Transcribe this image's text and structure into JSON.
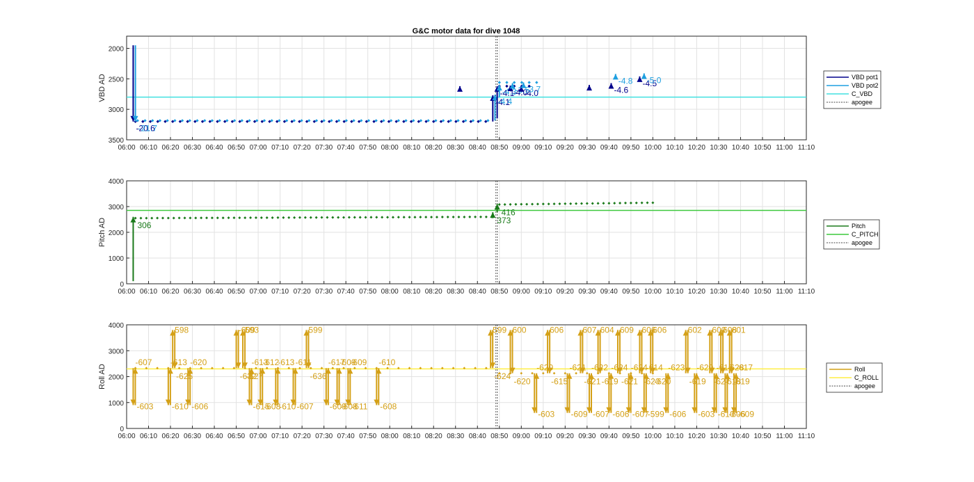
{
  "title": "G&C motor data for dive 1048",
  "x_ticks": [
    "06:00",
    "06:10",
    "06:20",
    "06:30",
    "06:40",
    "06:50",
    "07:00",
    "07:10",
    "07:20",
    "07:30",
    "07:40",
    "07:50",
    "08:00",
    "08:10",
    "08:20",
    "08:30",
    "08:40",
    "08:50",
    "09:00",
    "09:10",
    "09:20",
    "09:30",
    "09:40",
    "09:50",
    "10:00",
    "10:10",
    "10:20",
    "10:30",
    "10:40",
    "10:50",
    "11:00",
    "11:10"
  ],
  "colors": {
    "vbd_pot1": "#00008b",
    "vbd_pot2": "#1e9fe0",
    "c_vbd": "#40e0e0",
    "pitch": "#1a7a1a",
    "c_pitch": "#3cc83c",
    "roll": "#d4a017",
    "c_roll": "#ffee44",
    "apogee": "#444444"
  },
  "chart_data": [
    {
      "type": "line",
      "name": "vbd",
      "ylabel": "VBD AD",
      "ylim": [
        3500,
        1800
      ],
      "y_reversed": true,
      "y_ticks": [
        2000,
        2500,
        3000,
        3500
      ],
      "xlim_min": [
        0,
        190
      ],
      "grid": true,
      "legend_position": "outside-right",
      "legend": [
        "VBD pot1",
        "VBD pot2",
        "C_VBD",
        "apogee"
      ],
      "apogee_min": 169,
      "c_vbd": 2800,
      "pot1_dots": {
        "start": 4,
        "end": 187,
        "step": 3.4,
        "jitter_amp": 10,
        "segments": [
          [
            4,
            167,
            3200,
            3200
          ],
          [
            170,
            187,
            2620,
            2620
          ]
        ]
      },
      "pot2_dots": {
        "start": 5,
        "end": 188,
        "step": 3.4,
        "segments": [
          [
            5,
            167,
            3185,
            3185
          ],
          [
            170,
            188,
            2560,
            2560
          ]
        ]
      },
      "arrows": [
        {
          "series": "pot1",
          "t": 3,
          "from": 1950,
          "to": 3200,
          "label": "-20.6"
        },
        {
          "series": "pot2",
          "t": 4,
          "from": 1950,
          "to": 3200,
          "label": "-21.7"
        },
        {
          "series": "pot1",
          "t": 167,
          "from": 3200,
          "to": 2770,
          "label": "-4.1"
        },
        {
          "series": "pot2",
          "t": 168,
          "from": 3185,
          "to": 2760,
          "label": "-4.4"
        },
        {
          "series": "pot1",
          "t": 169,
          "from": 3150,
          "to": 2620,
          "label": "-4.1"
        },
        {
          "series": "pot2",
          "t": 170,
          "from": 2800,
          "to": 2600,
          "label": "-4.3"
        },
        {
          "series": "pot1",
          "t": 175,
          "from": 2680,
          "to": 2610,
          "label": "-4.0"
        },
        {
          "series": "pot2",
          "t": 176,
          "from": 2650,
          "to": 2570,
          "label": "-3.5"
        },
        {
          "series": "pot1",
          "t": 180,
          "from": 2660,
          "to": 2620,
          "label": "-4.0"
        },
        {
          "series": "pot2",
          "t": 181,
          "from": 2630,
          "to": 2560,
          "label": "-3.7"
        },
        {
          "series": "pot1",
          "t": 152,
          "from": 2650,
          "to": 2620,
          "label": ""
        },
        {
          "series": "pot1",
          "t": 170,
          "from": 2620,
          "to": 2620,
          "label": ""
        },
        {
          "series": "pot1",
          "t": 211,
          "from": 2620,
          "to": 2600,
          "label": ""
        },
        {
          "series": "pot1",
          "t": 221,
          "from": 2650,
          "to": 2570,
          "label": "-4.6"
        },
        {
          "series": "pot2",
          "t": 223,
          "from": 2480,
          "to": 2420,
          "label": "-4.8"
        },
        {
          "series": "pot1",
          "t": 234,
          "from": 2480,
          "to": 2460,
          "label": "-4.5"
        },
        {
          "series": "pot2",
          "t": 236,
          "from": 2440,
          "to": 2410,
          "label": "-5.0"
        }
      ]
    },
    {
      "type": "line",
      "name": "pitch",
      "ylabel": "Pitch AD",
      "ylim": [
        0,
        4000
      ],
      "y_ticks": [
        0,
        1000,
        2000,
        3000,
        4000
      ],
      "grid": true,
      "legend_position": "outside-right",
      "legend": [
        "Pitch",
        "C_PITCH",
        "apogee"
      ],
      "apogee_min": 169,
      "c_pitch": 2850,
      "dots": {
        "segments": [
          [
            4,
            167,
            2550,
            2600
          ],
          [
            170,
            240,
            3080,
            3150
          ]
        ],
        "step": 2.5
      },
      "arrows": [
        {
          "t": 3,
          "from": 100,
          "to": 2600,
          "label": "306"
        },
        {
          "t": 167,
          "from": 2550,
          "to": 2780,
          "label": "373"
        },
        {
          "t": 169,
          "from": 2780,
          "to": 3100,
          "label": "416"
        }
      ]
    },
    {
      "type": "line",
      "name": "roll",
      "ylabel": "Roll AD",
      "ylim": [
        0,
        4000
      ],
      "y_ticks": [
        0,
        1000,
        2000,
        3000,
        4000
      ],
      "grid": true,
      "legend_position": "outside-right",
      "legend": [
        "Roll",
        "C_ROLL",
        "apogee"
      ],
      "apogee_min": 169,
      "c_roll": 2300,
      "dots": {
        "segments": [
          [
            4,
            167,
            2330,
            2330
          ],
          [
            170,
            240,
            2130,
            2130
          ]
        ],
        "step": 5
      },
      "pulses": [
        {
          "t": 3,
          "dir": "down",
          "label": "-607",
          "label2": "-603"
        },
        {
          "t": 19,
          "dir": "down",
          "label": "-613",
          "label2": "-610"
        },
        {
          "t": 21,
          "dir": "up",
          "label": "598",
          "label2": "-625"
        },
        {
          "t": 28,
          "dir": "down",
          "label": "-620",
          "label2": "-606"
        },
        {
          "t": 50,
          "dir": "up",
          "label": "-609",
          "label2": "-632"
        },
        {
          "t": 53,
          "dir": "up",
          "label": "593",
          "label2": "-627"
        },
        {
          "t": 56,
          "dir": "down",
          "label": "-613",
          "label2": "-615"
        },
        {
          "t": 61,
          "dir": "down",
          "label": "-612",
          "label2": "-608"
        },
        {
          "t": 68,
          "dir": "down",
          "label": "-613",
          "label2": "-610"
        },
        {
          "t": 76,
          "dir": "down",
          "label": "-611",
          "label2": "-607"
        },
        {
          "t": 82,
          "dir": "up",
          "label": "599",
          "label2": "-636"
        },
        {
          "t": 91,
          "dir": "down",
          "label": "-617",
          "label2": "-609"
        },
        {
          "t": 96,
          "dir": "down",
          "label": "-609",
          "label2": "-608"
        },
        {
          "t": 101,
          "dir": "down",
          "label": "-609",
          "label2": "-611"
        },
        {
          "t": 114,
          "dir": "down",
          "label": "-610",
          "label2": "-608"
        },
        {
          "t": 166,
          "dir": "up",
          "label": "599",
          "label2": "-624"
        },
        {
          "t": 175,
          "dir": "up",
          "label": "600",
          "label2": "-620"
        },
        {
          "t": 186,
          "dir": "down",
          "label": "-620",
          "label2": "-603"
        },
        {
          "t": 192,
          "dir": "up",
          "label": "606",
          "label2": "-615"
        },
        {
          "t": 201,
          "dir": "down",
          "label": "-621",
          "label2": "-609"
        },
        {
          "t": 207,
          "dir": "up",
          "label": "607",
          "label2": "-621"
        },
        {
          "t": 211,
          "dir": "down",
          "label": "-622",
          "label2": "-607"
        },
        {
          "t": 215,
          "dir": "up",
          "label": "604",
          "label2": "-619"
        },
        {
          "t": 220,
          "dir": "down",
          "label": "-624",
          "label2": "-606"
        },
        {
          "t": 224,
          "dir": "up",
          "label": "609",
          "label2": "-621"
        },
        {
          "t": 229,
          "dir": "down",
          "label": "-624",
          "label2": "-607"
        },
        {
          "t": 234,
          "dir": "up",
          "label": "606",
          "label2": "-620"
        },
        {
          "t": 236,
          "dir": "down",
          "label": "-614",
          "label2": "-599"
        },
        {
          "t": 239,
          "dir": "up",
          "label": "606",
          "label2": "-620"
        },
        {
          "t": 246,
          "dir": "down",
          "label": "-623",
          "label2": "-606"
        },
        {
          "t": 255,
          "dir": "up",
          "label": "602",
          "label2": "-619"
        },
        {
          "t": 259,
          "dir": "down",
          "label": "-620",
          "label2": "-603"
        },
        {
          "t": 266,
          "dir": "up",
          "label": "600",
          "label2": "-627"
        },
        {
          "t": 268,
          "dir": "down",
          "label": "-616",
          "label2": "-610"
        },
        {
          "t": 271,
          "dir": "up",
          "label": "608",
          "label2": "-618"
        },
        {
          "t": 273,
          "dir": "down",
          "label": "-628",
          "label2": "-606"
        },
        {
          "t": 275,
          "dir": "up",
          "label": "601",
          "label2": "-619"
        },
        {
          "t": 277,
          "dir": "down",
          "label": "-617",
          "label2": "-609"
        }
      ]
    }
  ]
}
